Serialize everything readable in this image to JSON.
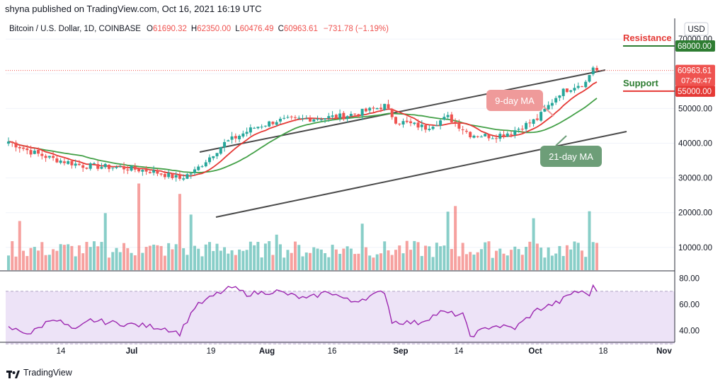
{
  "publisher_line": "shyna published on TradingView.com, Oct 16, 2021 16:19 UTC",
  "brand": {
    "name": "TradingView"
  },
  "header": {
    "symbol": "Bitcoin / U.S. Dollar, 1D, COINBASE",
    "open_label": "O",
    "open": "61690.32",
    "high_label": "H",
    "high": "62350.00",
    "low_label": "L",
    "low": "60476.49",
    "close_label": "C",
    "close": "60963.61",
    "change": "−731.78 (−1.19%)",
    "currency": "USD"
  },
  "price_tag": {
    "price": "60963.61",
    "countdown": "07:40:47"
  },
  "levels": {
    "resistance": {
      "label": "Resistance",
      "value": "68000.00",
      "color": "#2e7d32",
      "label_color": "#e53935"
    },
    "support": {
      "label": "Support",
      "value": "55000.00",
      "color": "#e53935",
      "label_color": "#2e7d32"
    }
  },
  "annotations": {
    "ma9": "9-day MA",
    "ma21": "21-day MA"
  },
  "colors": {
    "up": "#26a69a",
    "down": "#ef5350",
    "ma9": "#e53935",
    "ma21": "#43a047",
    "rsi": "#9c27b0",
    "rsi_band": "#ede3f7",
    "channel": "#4a4a4a",
    "ma9_box": "#ef9a9a",
    "ma21_box": "#6d9e78"
  },
  "chart_data": [
    {
      "type": "candlestick",
      "title": "Bitcoin / U.S. Dollar, 1D, COINBASE",
      "y_axis_ticks": [
        "70000.00",
        "60000.00",
        "50000.00",
        "40000.00",
        "30000.00",
        "20000.00",
        "10000.00"
      ],
      "x_axis_ticks": [
        "14",
        "Jul",
        "19",
        "Aug",
        "16",
        "Sep",
        "14",
        "Oct",
        "18",
        "Nov"
      ],
      "price_range": [
        29000,
        62350
      ],
      "approx_monthly_closes": [
        {
          "date": "Jun 14",
          "close": 40500
        },
        {
          "date": "Jul 1",
          "close": 33500
        },
        {
          "date": "Jul 19",
          "close": 30800
        },
        {
          "date": "Aug 1",
          "close": 40000
        },
        {
          "date": "Aug 16",
          "close": 47000
        },
        {
          "date": "Sep 1",
          "close": 48800
        },
        {
          "date": "Sep 14",
          "close": 47000
        },
        {
          "date": "Oct 1",
          "close": 47500
        },
        {
          "date": "Oct 16",
          "close": 60963.61
        }
      ]
    },
    {
      "type": "line",
      "title": "RSI",
      "y_axis_ticks": [
        "80.00",
        "60.00",
        "40.00"
      ],
      "band": [
        30,
        70
      ],
      "latest": 73
    }
  ]
}
